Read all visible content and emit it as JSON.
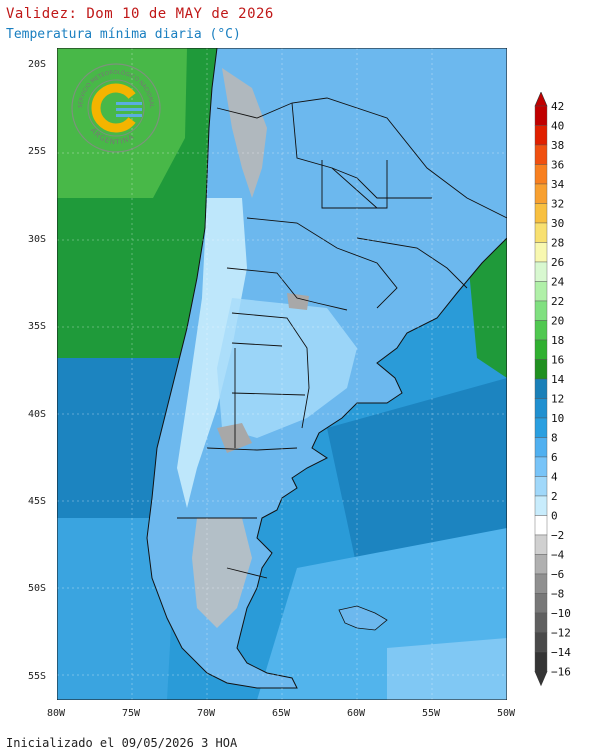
{
  "header": {
    "validity": "Validez: Dom 10 de MAY de 2026",
    "subtitle": "Temperatura mínima diaria (°C)"
  },
  "footer": {
    "init": "Inicializado el 09/05/2026 3 HOA"
  },
  "logo": {
    "top_text": "SERVICIO METEOROLÓGICO NACIONAL",
    "bottom_text": "ARGENTINA",
    "icon": "smn-logo"
  },
  "axes": {
    "lat_labels": [
      "20S",
      "25S",
      "30S",
      "35S",
      "40S",
      "45S",
      "50S",
      "55S"
    ],
    "lon_labels": [
      "80W",
      "75W",
      "70W",
      "65W",
      "60W",
      "55W",
      "50W"
    ]
  },
  "colorbar": {
    "labels": [
      "42",
      "40",
      "38",
      "36",
      "34",
      "32",
      "30",
      "28",
      "26",
      "24",
      "22",
      "20",
      "18",
      "16",
      "14",
      "12",
      "10",
      "8",
      "6",
      "4",
      "2",
      "0",
      "−2",
      "−4",
      "−6",
      "−8",
      "−10",
      "−12",
      "−14",
      "−16"
    ],
    "colors": [
      "#c00000",
      "#e02000",
      "#f05010",
      "#f88020",
      "#f8a030",
      "#f8c040",
      "#f8e070",
      "#f8f8b0",
      "#d8f8d0",
      "#b0f0a8",
      "#80e080",
      "#50c850",
      "#30b030",
      "#209020",
      "#1a80b8",
      "#2090d0",
      "#2a9fe0",
      "#50b0f0",
      "#78c4f8",
      "#a0d8fa",
      "#c8ecfc",
      "#ffffff",
      "#d0d0d0",
      "#b0b0b0",
      "#909090",
      "#787878",
      "#606060",
      "#4a4a4a",
      "#353535"
    ]
  },
  "colors": {
    "ocean_pacific_north": "#1f9a3a",
    "ocean_pacific_south": "#1c84c0",
    "ocean_atlantic": "#3aa0dc",
    "land": "#7cc4f2"
  }
}
